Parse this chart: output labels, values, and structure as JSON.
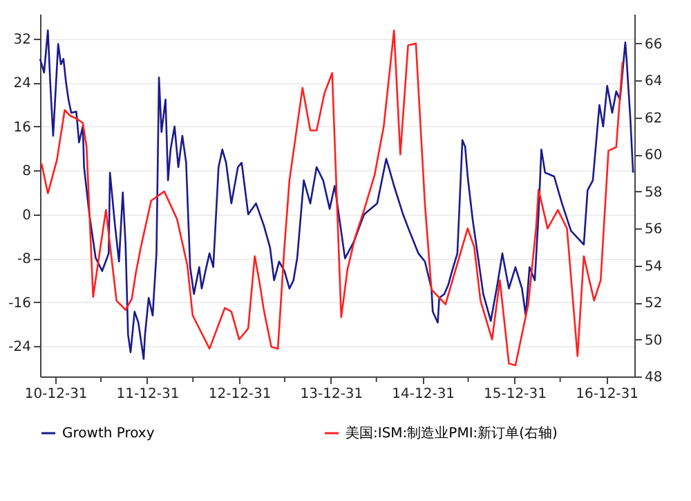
{
  "chart_data": {
    "type": "line",
    "xlim": [
      "2010-10-31",
      "2017-04-21"
    ],
    "xticks": [
      {
        "value": "2010-12-31",
        "label": "10-12-31"
      },
      {
        "value": "2011-06-30",
        "label": null
      },
      {
        "value": "2011-12-31",
        "label": "11-12-31"
      },
      {
        "value": "2012-06-30",
        "label": null
      },
      {
        "value": "2012-12-31",
        "label": "12-12-31"
      },
      {
        "value": "2013-06-30",
        "label": null
      },
      {
        "value": "2013-12-31",
        "label": "13-12-31"
      },
      {
        "value": "2014-06-30",
        "label": null
      },
      {
        "value": "2014-12-31",
        "label": "14-12-31"
      },
      {
        "value": "2015-06-30",
        "label": null
      },
      {
        "value": "2015-12-31",
        "label": "15-12-31"
      },
      {
        "value": "2016-06-30",
        "label": null
      },
      {
        "value": "2016-12-31",
        "label": "16-12-31"
      }
    ],
    "ylim": [
      -29.5,
      36.5
    ],
    "yticks": [
      -24,
      -16,
      -8,
      0,
      8,
      16,
      24,
      32
    ],
    "y2lim": [
      48,
      67.6
    ],
    "y2ticks": [
      48,
      50,
      52,
      54,
      56,
      58,
      60,
      62,
      64,
      66
    ],
    "grid": "y",
    "legend": "bottom",
    "line_style": "solid",
    "marker": "none",
    "series": [
      {
        "name": "Growth Proxy",
        "color": "#1a1a8c",
        "x": [
          "2010-10-31",
          "2010-11-16",
          "2010-12-01",
          "2010-12-11",
          "2010-12-22",
          "2011-01-11",
          "2011-01-22",
          "2011-02-01",
          "2011-02-11",
          "2011-02-21",
          "2011-03-04",
          "2011-03-24",
          "2011-04-04",
          "2011-04-19",
          "2011-04-24",
          "2011-05-15",
          "2011-06-09",
          "2011-07-05",
          "2011-07-31",
          "2011-08-05",
          "2011-08-25",
          "2011-09-10",
          "2011-09-25",
          "2011-10-06",
          "2011-10-16",
          "2011-10-26",
          "2011-11-11",
          "2011-11-26",
          "2011-12-17",
          "2011-12-22",
          "2012-01-06",
          "2012-01-22",
          "2012-01-27",
          "2012-02-06",
          "2012-02-16",
          "2012-02-26",
          "2012-03-13",
          "2012-03-23",
          "2012-04-02",
          "2012-04-18",
          "2012-05-03",
          "2012-05-19",
          "2012-06-03",
          "2012-06-19",
          "2012-07-04",
          "2012-07-25",
          "2012-08-04",
          "2012-08-19",
          "2012-09-04",
          "2012-09-19",
          "2012-10-10",
          "2012-10-25",
          "2012-11-09",
          "2012-11-30",
          "2012-12-26",
          "2013-01-10",
          "2013-02-05",
          "2013-03-08",
          "2013-04-08",
          "2013-05-03",
          "2013-05-19",
          "2013-06-08",
          "2013-06-29",
          "2013-07-19",
          "2013-08-04",
          "2013-08-19",
          "2013-09-14",
          "2013-10-10",
          "2013-11-04",
          "2013-11-30",
          "2013-12-26",
          "2014-01-15",
          "2014-02-25",
          "2014-04-01",
          "2014-05-12",
          "2014-07-03",
          "2014-08-08",
          "2014-08-18",
          "2014-09-08",
          "2014-10-14",
          "2014-11-08",
          "2014-12-14",
          "2015-01-09",
          "2015-02-04",
          "2015-02-09",
          "2015-03-01",
          "2015-03-07",
          "2015-03-27",
          "2015-04-12",
          "2015-04-27",
          "2015-05-18",
          "2015-06-07",
          "2015-06-18",
          "2015-06-28",
          "2015-07-18",
          "2015-08-03",
          "2015-08-29",
          "2015-09-28",
          "2015-10-24",
          "2015-11-13",
          "2015-12-09",
          "2016-01-04",
          "2016-01-30",
          "2016-02-14",
          "2016-02-29",
          "2016-03-21",
          "2016-04-05",
          "2016-04-16",
          "2016-05-01",
          "2016-06-06",
          "2016-07-07",
          "2016-08-12",
          "2016-10-02",
          "2016-10-17",
          "2016-11-07",
          "2016-12-03",
          "2016-12-18",
          "2017-01-03",
          "2017-01-23",
          "2017-02-08",
          "2017-02-23",
          "2017-03-16",
          "2017-03-21",
          "2017-04-05",
          "2017-04-16"
        ],
        "values": [
          28.3,
          25.8,
          33.5,
          23.4,
          14.3,
          31.0,
          27.3,
          28.3,
          24.1,
          20.9,
          18.5,
          18.7,
          13.1,
          16.0,
          8.6,
          0,
          -7.9,
          -10.3,
          -7.1,
          7.6,
          -2,
          -8.6,
          4.0,
          -5.4,
          -21.9,
          -25.1,
          -17.7,
          -19.7,
          -26.3,
          -22.1,
          -15.2,
          -18.4,
          -14.5,
          -7.1,
          24.9,
          15.0,
          20.9,
          6.2,
          11.8,
          16.0,
          8.6,
          14.3,
          9.4,
          -9.6,
          -14.5,
          -9.6,
          -13.5,
          -10.3,
          -7.1,
          -9.6,
          8.6,
          11.8,
          9.4,
          2,
          8.6,
          9.4,
          0,
          2,
          -2,
          -6.1,
          -12.0,
          -8.6,
          -10.3,
          -13.5,
          -12,
          -7.9,
          6.2,
          2,
          8.6,
          6.2,
          1,
          5.2,
          -8,
          -5,
          0,
          2,
          10.1,
          8.6,
          5.2,
          0,
          -3,
          -7.1,
          -8.6,
          -13.5,
          -17.7,
          -19.7,
          -15.2,
          -14.5,
          -12.8,
          -10.3,
          -7.1,
          13.5,
          12.3,
          6.9,
          -1,
          -6.1,
          -14.5,
          -19.4,
          -12.8,
          -7.1,
          -13.5,
          -9.6,
          -13.5,
          -18.4,
          -9.6,
          -12,
          0,
          11.8,
          7.6,
          6.9,
          2,
          -3,
          -5.5,
          4.4,
          6.2,
          19.9,
          16,
          23.4,
          18.5,
          22.4,
          20.9,
          31.3,
          28.3,
          17.5,
          7.6
        ]
      },
      {
        "name": "美国:ISM:制造业PMI:新订单(右轴)",
        "color": "#ff2020",
        "axis": "y2",
        "x": [
          "2010-11-06",
          "2010-12-01",
          "2011-01-06",
          "2011-02-06",
          "2011-02-27",
          "2011-03-29",
          "2011-04-19",
          "2011-05-04",
          "2011-05-30",
          "2011-07-20",
          "2011-08-31",
          "2011-10-06",
          "2011-10-31",
          "2011-11-16",
          "2011-12-06",
          "2012-01-16",
          "2012-03-08",
          "2012-04-28",
          "2012-06-08",
          "2012-06-29",
          "2012-09-04",
          "2012-11-04",
          "2012-11-30",
          "2012-12-31",
          "2013-02-05",
          "2013-03-03",
          "2013-03-23",
          "2013-04-08",
          "2013-05-08",
          "2013-06-03",
          "2013-06-29",
          "2013-07-19",
          "2013-09-09",
          "2013-10-10",
          "2013-11-04",
          "2013-12-05",
          "2014-01-05",
          "2014-02-10",
          "2014-03-07",
          "2014-04-06",
          "2014-05-12",
          "2014-06-23",
          "2014-07-29",
          "2014-09-08",
          "2014-10-03",
          "2014-11-03",
          "2014-12-04",
          "2015-01-09",
          "2015-02-04",
          "2015-04-01",
          "2015-05-18",
          "2015-06-28",
          "2015-07-24",
          "2015-08-18",
          "2015-10-03",
          "2015-11-03",
          "2015-12-09",
          "2016-01-04",
          "2016-02-24",
          "2016-03-26",
          "2016-04-05",
          "2016-05-11",
          "2016-06-21",
          "2016-07-27",
          "2016-09-07",
          "2016-10-02",
          "2016-11-12",
          "2016-12-08",
          "2017-01-08",
          "2017-02-08",
          "2017-03-05"
        ],
        "values": [
          59.5,
          57.9,
          59.7,
          62.4,
          62.1,
          61.9,
          61.7,
          60.4,
          52.3,
          57,
          52.1,
          51.6,
          52.2,
          53.6,
          55,
          57.5,
          58,
          56.5,
          54,
          51.3,
          49.5,
          51.7,
          51.5,
          50.0,
          50.6,
          54.5,
          53,
          51.6,
          49.6,
          49.5,
          55,
          58.6,
          63.6,
          61.3,
          61.3,
          63.3,
          64.4,
          51.2,
          53.8,
          55.5,
          57,
          58.9,
          61.5,
          66.7,
          60.0,
          65.9,
          66.0,
          57.3,
          52.7,
          51.9,
          54.1,
          56,
          55,
          52.1,
          50.0,
          53.2,
          48.7,
          48.6,
          51.9,
          56,
          58.1,
          56,
          57,
          56,
          49.1,
          54.5,
          52.1,
          53.2,
          60.2,
          60.4,
          65.0
        ]
      }
    ]
  }
}
